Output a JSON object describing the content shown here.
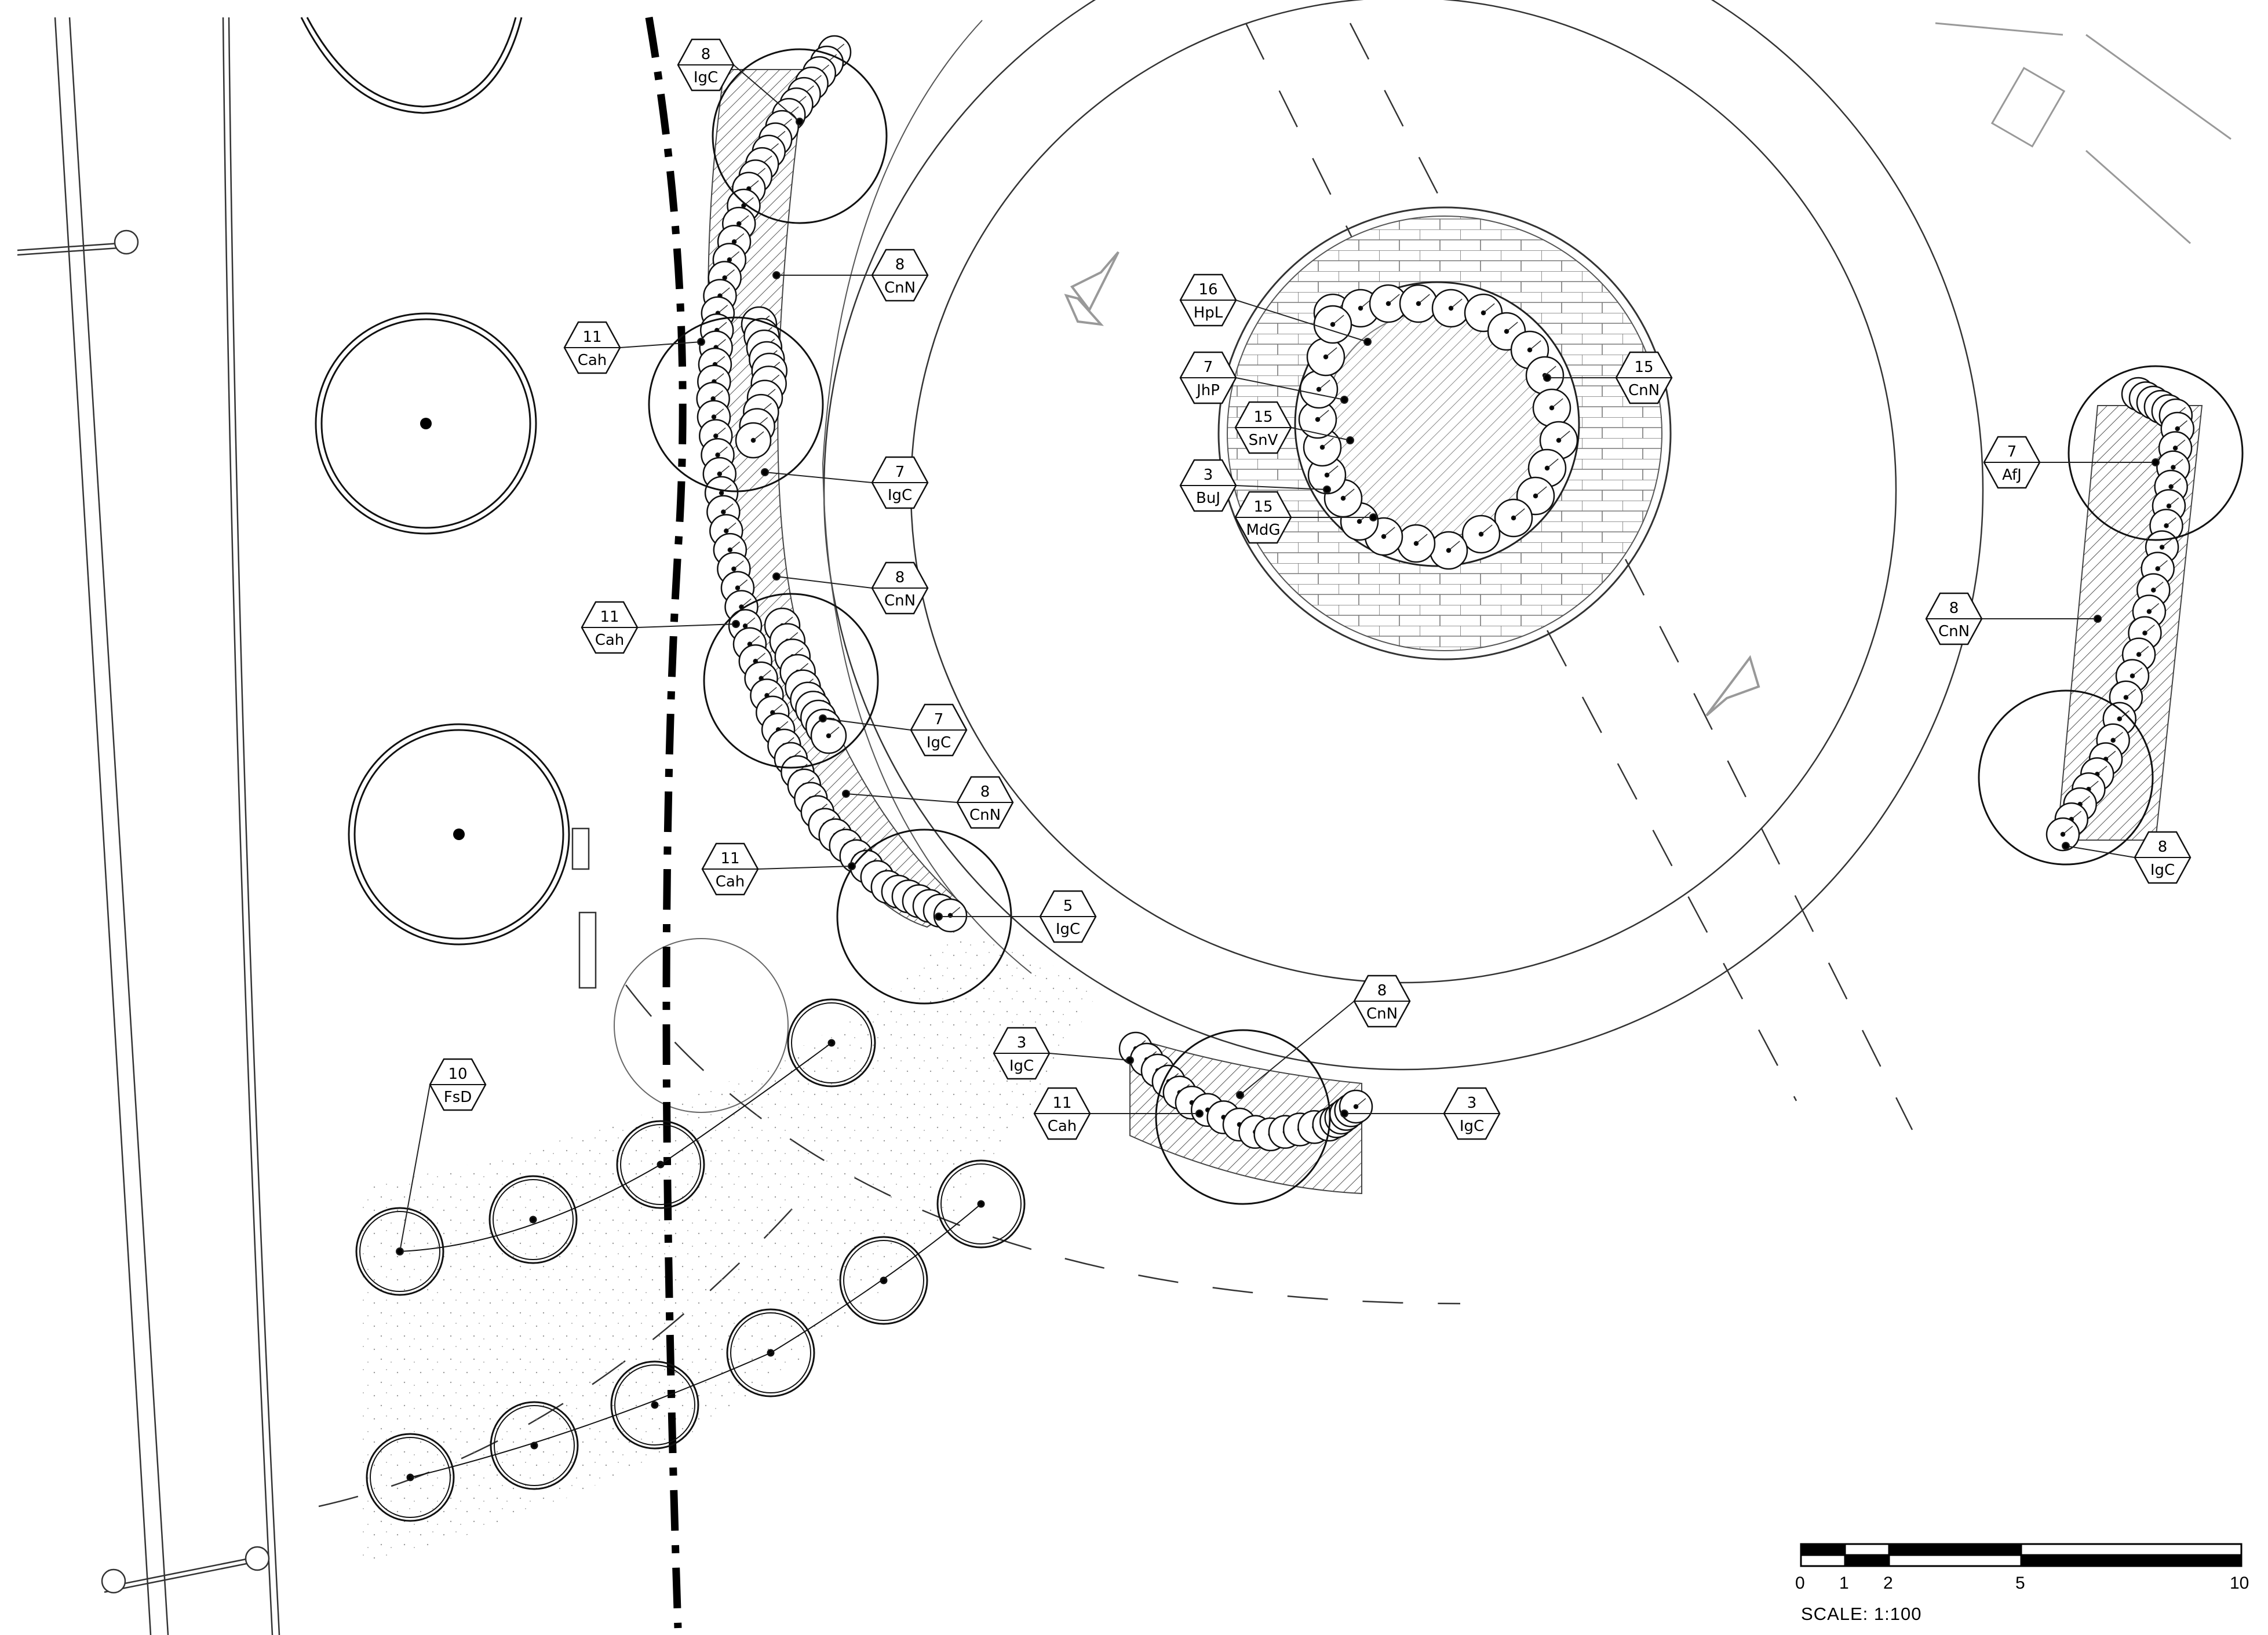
{
  "drawing": {
    "scale_text": "SCALE: 1:100",
    "scale_ticks": [
      "0",
      "1",
      "2",
      "5",
      "10"
    ]
  },
  "tags": [
    {
      "count": "8",
      "code": "IgC"
    },
    {
      "count": "8",
      "code": "CnN"
    },
    {
      "count": "11",
      "code": "Cah"
    },
    {
      "count": "7",
      "code": "IgC"
    },
    {
      "count": "8",
      "code": "CnN"
    },
    {
      "count": "11",
      "code": "Cah"
    },
    {
      "count": "7",
      "code": "IgC"
    },
    {
      "count": "8",
      "code": "CnN"
    },
    {
      "count": "11",
      "code": "Cah"
    },
    {
      "count": "5",
      "code": "IgC"
    },
    {
      "count": "10",
      "code": "FsD"
    },
    {
      "count": "3",
      "code": "IgC"
    },
    {
      "count": "11",
      "code": "Cah"
    },
    {
      "count": "8",
      "code": "CnN"
    },
    {
      "count": "3",
      "code": "IgC"
    },
    {
      "count": "16",
      "code": "HpL"
    },
    {
      "count": "7",
      "code": "JhP"
    },
    {
      "count": "15",
      "code": "SnV"
    },
    {
      "count": "3",
      "code": "BuJ"
    },
    {
      "count": "15",
      "code": "MdG"
    },
    {
      "count": "15",
      "code": "CnN"
    },
    {
      "count": "7",
      "code": "AfJ"
    },
    {
      "count": "8",
      "code": "CnN"
    },
    {
      "count": "8",
      "code": "IgC"
    }
  ]
}
